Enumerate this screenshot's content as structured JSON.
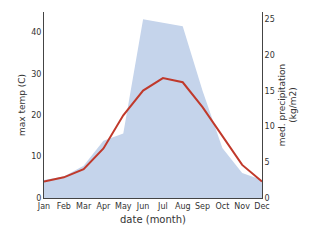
{
  "chart_data": {
    "type": "line",
    "categories": [
      "Jan",
      "Feb",
      "Mar",
      "Apr",
      "May",
      "Jun",
      "Jul",
      "Aug",
      "Sep",
      "Oct",
      "Nov",
      "Dec"
    ],
    "series": [
      {
        "type": "area",
        "axis": "y2",
        "color": "#c5d4eb",
        "values": [
          2.5,
          3.0,
          4.5,
          8.0,
          9.0,
          25.0,
          24.5,
          24.0,
          15.0,
          7.0,
          3.5,
          2.5
        ]
      },
      {
        "type": "line",
        "color": "#c0392b",
        "values": [
          4,
          5,
          7,
          12,
          20,
          26,
          29,
          28,
          22,
          15,
          8,
          4
        ]
      }
    ],
    "xlabel": "date (month)",
    "ylabel": "max temp (C)",
    "y2label": "med. precipitation\n(kg/m2)",
    "ylim": [
      0,
      45
    ],
    "yticks": [
      0,
      10,
      20,
      30,
      40
    ],
    "y2lim": [
      0,
      26
    ],
    "y2ticks": [
      0,
      5,
      10,
      15,
      20,
      25
    ],
    "grid": false
  }
}
